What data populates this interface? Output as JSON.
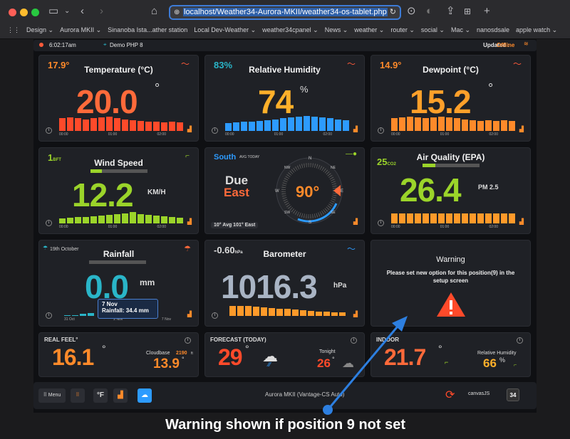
{
  "browser": {
    "url_display": "localhost/Weather34-Aurora-MKII/weather34-os-tablet.php",
    "bookmarks": [
      "Design ⌄",
      "Aurora MKII ⌄",
      "Sinanoba Ista...ather station",
      "Local Dev-Weather ⌄",
      "weather34cpanel ⌄",
      "News ⌄",
      "weather ⌄",
      "router ⌄",
      "social ⌄",
      "Mac ⌄",
      "nanosdsale",
      "apple watch ⌄"
    ]
  },
  "topbar": {
    "time": "6:02:17am",
    "demo": "Demo PHP 8",
    "updated_label": "Updated :",
    "updated_status": "Offline"
  },
  "temperature": {
    "title": "Temperature (°C)",
    "small": "17.9°",
    "value": "20.0",
    "unit": "°",
    "ticks": [
      "00:00",
      "01:00",
      "02:00"
    ]
  },
  "humidity": {
    "title": "Relative Humidity",
    "small": "83%",
    "value": "74",
    "unit": "%",
    "ticks": [
      "00:00",
      "01:00",
      "02:00"
    ]
  },
  "dewpoint": {
    "title": "Dewpoint (°C)",
    "small": "14.9°",
    "value": "15.2",
    "unit": "°",
    "ticks": [
      "00:00",
      "01:00",
      "02:00"
    ]
  },
  "wind": {
    "title": "Wind Speed",
    "small": "1",
    "small_unit": "BFT",
    "value": "12.2",
    "unit": "KM/H",
    "ticks": [
      "00:00",
      "01:00",
      "02:00"
    ]
  },
  "compass": {
    "direction": "South",
    "avg_label": "AVG TODAY",
    "main1": "Due",
    "main2": "East",
    "degrees": "90°",
    "footer": "10° Avg 101° East",
    "labels": {
      "n": "N",
      "ne": "NE",
      "e": "E",
      "se": "SE",
      "s": "S",
      "sw": "SW",
      "w": "W",
      "nw": "NW"
    }
  },
  "airquality": {
    "title": "Air Quality (EPA)",
    "small": "25",
    "small_unit": "CO2",
    "value": "26.4",
    "unit": "PM 2.5",
    "ticks": [
      "00:00",
      "01:00",
      "02:00"
    ]
  },
  "rainfall": {
    "title": "Rainfall",
    "date": "19th October",
    "value": "0.0",
    "unit": "mm",
    "tooltip_date": "7 Nov",
    "tooltip_text": "Rainfall: 34.4 mm",
    "ticks": [
      "31 Oct",
      "2 Nov",
      "7 Nov"
    ]
  },
  "barometer": {
    "title": "Barometer",
    "small": "-0.60",
    "small_unit": "hPa",
    "value": "1016.3",
    "unit": "hPa"
  },
  "warning": {
    "title": "Warning",
    "text": "Please set new option for this position(9) in the setup screen"
  },
  "realfeel": {
    "title": "REAL FEEL°",
    "value": "16.1",
    "unit": "°",
    "cloud_label": "Cloudbase",
    "cloud_value": "2190",
    "cloud_unit": "ft",
    "dew": "13.9",
    "dew_unit": "°"
  },
  "forecast": {
    "title": "FORECAST (TODAY)",
    "value": "29",
    "unit": "°",
    "tonight_label": "Tonight",
    "tonight_value": "26",
    "tonight_unit": "°"
  },
  "indoor": {
    "title": "INDOOR",
    "value": "21.7",
    "unit": "°",
    "hum_label": "Relative Humidity",
    "hum_value": "66",
    "hum_unit": "%"
  },
  "bottom": {
    "menu_label": "Menu",
    "units": "°F",
    "station": "Aurora MKII (Vantage-CS Auto)",
    "canvas": "canvasJS",
    "badge": "34"
  },
  "caption": "Warning shown if position 9 not set",
  "colors": {
    "orange": "#ff8a2a",
    "red": "#ff4a2a",
    "blue": "#2d9bff",
    "green": "#9bd42a",
    "teal": "#2ab5c8",
    "slate": "#a9b4c4"
  }
}
